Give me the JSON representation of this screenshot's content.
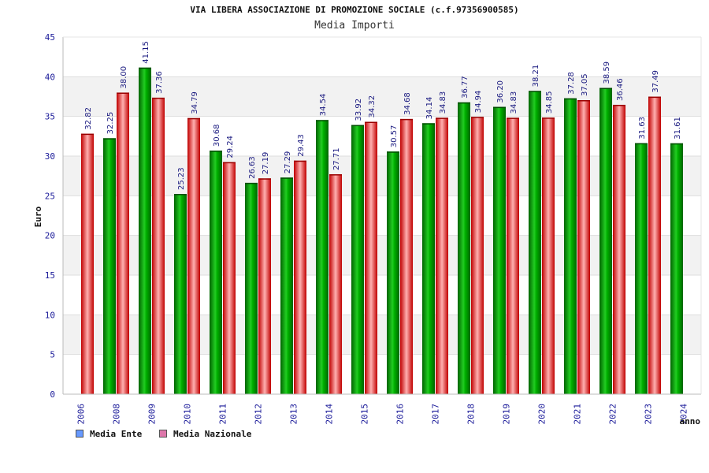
{
  "chart_data": {
    "type": "bar",
    "title": "VIA LIBERA ASSOCIAZIONE DI PROMOZIONE SOCIALE (c.f.97356900585)",
    "subtitle": "Media Importi",
    "xlabel": "anno",
    "ylabel": "Euro",
    "ylim": [
      0,
      45
    ],
    "yticks": [
      0,
      5,
      10,
      15,
      20,
      25,
      30,
      35,
      40,
      45
    ],
    "grid": true,
    "legend_position": "bottom-left",
    "categories": [
      "2006",
      "2008",
      "2009",
      "2010",
      "2011",
      "2012",
      "2013",
      "2014",
      "2015",
      "2016",
      "2017",
      "2018",
      "2019",
      "2020",
      "2021",
      "2022",
      "2023",
      "2024"
    ],
    "series": [
      {
        "name": "Media Ente",
        "color": "#00a000",
        "legend_color": "#6699ff",
        "values": [
          null,
          32.25,
          41.15,
          25.23,
          30.68,
          26.63,
          27.29,
          34.54,
          33.92,
          30.57,
          34.14,
          36.77,
          36.2,
          38.21,
          37.28,
          38.59,
          31.63,
          31.61
        ],
        "labels": [
          "",
          "32.25",
          "41.15",
          "25.23",
          "30.68",
          "26.63",
          "27.29",
          "34.54",
          "33.92",
          "30.57",
          "34.14",
          "36.77",
          "36.20",
          "38.21",
          "37.28",
          "38.59",
          "31.63",
          "31.61"
        ]
      },
      {
        "name": "Media Nazionale",
        "color": "#ee2222",
        "legend_color": "#dd77aa",
        "values": [
          32.82,
          38.0,
          37.36,
          34.79,
          29.24,
          27.19,
          29.43,
          27.71,
          34.32,
          34.68,
          34.83,
          34.94,
          34.83,
          34.85,
          37.05,
          36.46,
          37.49,
          null
        ],
        "labels": [
          "32.82",
          "38.00",
          "37.36",
          "34.79",
          "29.24",
          "27.19",
          "29.43",
          "27.71",
          "34.32",
          "34.68",
          "34.83",
          "34.94",
          "34.83",
          "34.85",
          "37.05",
          "36.46",
          "37.49",
          ""
        ]
      }
    ]
  }
}
